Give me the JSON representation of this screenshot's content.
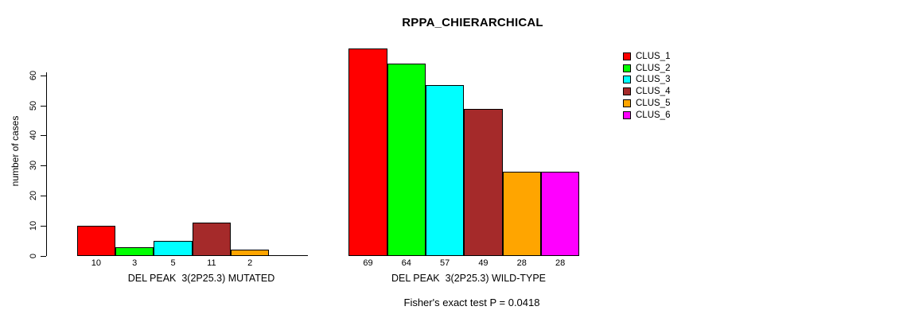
{
  "chart_data": {
    "type": "bar",
    "title": "RPPA_CHIERARCHICAL",
    "ylabel": "number of cases",
    "ylim": [
      0,
      60
    ],
    "yticks": [
      0,
      10,
      20,
      30,
      40,
      50,
      60
    ],
    "grid": false,
    "legend_position": "right",
    "clusters": [
      "CLUS_1",
      "CLUS_2",
      "CLUS_3",
      "CLUS_4",
      "CLUS_5",
      "CLUS_6"
    ],
    "colors": [
      "#ff0000",
      "#00ff00",
      "#00ffff",
      "#a52a2a",
      "#ffa500",
      "#ff00ff"
    ],
    "groups": [
      {
        "label": "DEL PEAK  3(2P25.3) MUTATED",
        "values": [
          10,
          3,
          5,
          11,
          2,
          0
        ]
      },
      {
        "label": "DEL PEAK  3(2P25.3) WILD-TYPE",
        "values": [
          69,
          64,
          57,
          49,
          28,
          28
        ]
      }
    ],
    "annotation": "Fisher's exact test P = 0.0418"
  }
}
